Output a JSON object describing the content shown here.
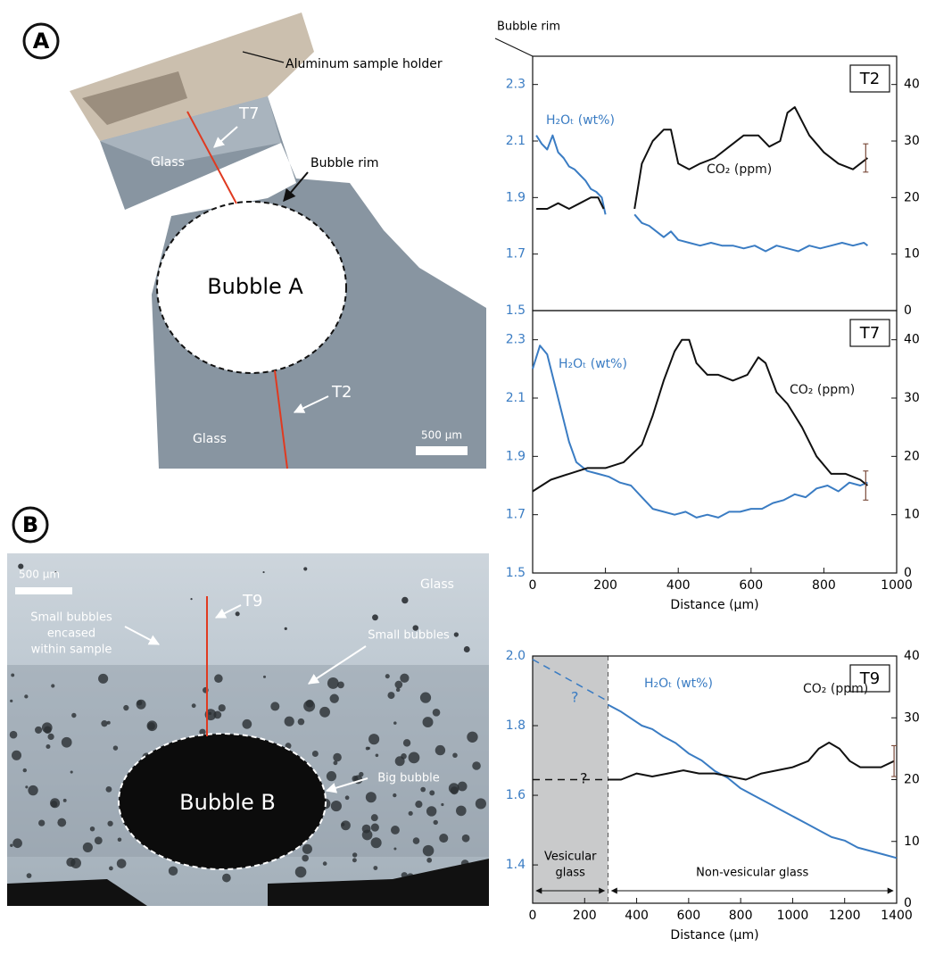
{
  "panels": {
    "A": {
      "label": "A",
      "holder": "Aluminum sample holder",
      "t7": "T7",
      "glass_top": "Glass",
      "rim": "Bubble rim",
      "bubble": "Bubble A",
      "t2": "T2",
      "glass_bottom": "Glass",
      "scale": "500 µm"
    },
    "B": {
      "label": "B",
      "scale": "500 µm",
      "t9": "T9",
      "glass": "Glass",
      "encased": [
        "Small bubbles",
        "encased",
        "within sample"
      ],
      "small": "Small bubbles",
      "big": "Big bubble",
      "bubble": "Bubble B"
    }
  },
  "chart_data": [
    {
      "type": "line",
      "title": "T2",
      "annotation": "Bubble rim",
      "xlim": [
        0,
        1000
      ],
      "ylim": [
        1.5,
        2.4
      ],
      "yticks": [
        1.5,
        1.7,
        1.9,
        2.1,
        2.3
      ],
      "y2lim": [
        0,
        45
      ],
      "y2ticks": [
        0,
        10,
        20,
        30,
        40
      ],
      "series": [
        {
          "name": "H₂Oₜ (wt%)",
          "color": "#3a7cc3",
          "x": [
            10,
            25,
            40,
            55,
            70,
            85,
            100,
            115,
            130,
            145,
            160,
            175,
            190,
            200,
            240,
            280,
            300,
            320,
            340,
            360,
            380,
            400,
            430,
            460,
            490,
            520,
            550,
            580,
            610,
            640,
            670,
            700,
            730,
            760,
            790,
            820,
            850,
            880,
            910,
            920
          ],
          "values": [
            2.12,
            2.09,
            2.07,
            2.12,
            2.06,
            2.04,
            2.01,
            2.0,
            1.98,
            1.96,
            1.93,
            1.92,
            1.9,
            1.84,
            null,
            1.84,
            1.81,
            1.8,
            1.78,
            1.76,
            1.78,
            1.75,
            1.74,
            1.73,
            1.74,
            1.73,
            1.73,
            1.72,
            1.73,
            1.71,
            1.73,
            1.72,
            1.71,
            1.73,
            1.72,
            1.73,
            1.74,
            1.73,
            1.74,
            1.73
          ]
        },
        {
          "name": "CO₂ (ppm)",
          "color": "#111111",
          "axis": "y2",
          "x": [
            10,
            40,
            70,
            100,
            130,
            160,
            180,
            195,
            240,
            280,
            300,
            330,
            360,
            380,
            400,
            430,
            460,
            500,
            540,
            580,
            620,
            650,
            680,
            700,
            720,
            760,
            800,
            840,
            880,
            920
          ],
          "values": [
            18,
            18,
            19,
            18,
            19,
            20,
            20,
            18,
            null,
            18,
            26,
            30,
            32,
            32,
            26,
            25,
            26,
            27,
            29,
            31,
            31,
            29,
            30,
            35,
            36,
            31,
            28,
            26,
            25,
            27
          ]
        }
      ],
      "error_bars": [
        {
          "x": 915,
          "value": 27,
          "error": 2.5
        }
      ]
    },
    {
      "type": "line",
      "title": "T7",
      "xlabel": "Distance (µm)",
      "xlim": [
        0,
        1000
      ],
      "xticks": [
        0,
        200,
        400,
        600,
        800,
        1000
      ],
      "ylim": [
        1.5,
        2.4
      ],
      "yticks": [
        1.5,
        1.7,
        1.9,
        2.1,
        2.3
      ],
      "y2lim": [
        0,
        45
      ],
      "y2ticks": [
        0,
        10,
        20,
        30,
        40
      ],
      "series": [
        {
          "name": "H₂Oₜ (wt%)",
          "color": "#3a7cc3",
          "x": [
            0,
            20,
            40,
            60,
            80,
            100,
            120,
            150,
            180,
            210,
            240,
            270,
            300,
            330,
            360,
            390,
            420,
            450,
            480,
            510,
            540,
            570,
            600,
            630,
            660,
            690,
            720,
            750,
            780,
            810,
            840,
            870,
            900,
            920
          ],
          "values": [
            2.2,
            2.28,
            2.25,
            2.15,
            2.05,
            1.95,
            1.88,
            1.85,
            1.84,
            1.83,
            1.81,
            1.8,
            1.76,
            1.72,
            1.71,
            1.7,
            1.71,
            1.69,
            1.7,
            1.69,
            1.71,
            1.71,
            1.72,
            1.72,
            1.74,
            1.75,
            1.77,
            1.76,
            1.79,
            1.8,
            1.78,
            1.81,
            1.8,
            1.81
          ]
        },
        {
          "name": "CO₂ (ppm)",
          "color": "#111111",
          "axis": "y2",
          "x": [
            0,
            50,
            100,
            150,
            200,
            250,
            300,
            330,
            360,
            390,
            410,
            430,
            450,
            480,
            510,
            550,
            590,
            620,
            640,
            670,
            700,
            740,
            780,
            820,
            860,
            900,
            920
          ],
          "values": [
            14,
            16,
            17,
            18,
            18,
            19,
            22,
            27,
            33,
            38,
            40,
            40,
            36,
            34,
            34,
            33,
            34,
            37,
            36,
            31,
            29,
            25,
            20,
            17,
            17,
            16,
            15
          ]
        }
      ],
      "error_bars": [
        {
          "x": 915,
          "value": 15,
          "error": 2.5
        }
      ]
    },
    {
      "type": "line",
      "title": "T9",
      "xlabel": "Distance (µm)",
      "xlim": [
        0,
        1400
      ],
      "xticks": [
        0,
        200,
        400,
        600,
        800,
        1000,
        1200,
        1400
      ],
      "ylim": [
        1.29,
        2.0
      ],
      "yticks": [
        1.4,
        1.6,
        1.8,
        {
          "value": 2,
          "label": "2.0"
        }
      ],
      "y2lim": [
        0,
        40
      ],
      "y2ticks": [
        0,
        10,
        20,
        30,
        40
      ],
      "series": [
        {
          "name": "?",
          "color": "#3a7cc3",
          "dashed": true,
          "x": [
            0,
            290
          ],
          "values": [
            1.99,
            1.87
          ]
        },
        {
          "name": "H₂Oₜ (wt%)",
          "color": "#3a7cc3",
          "x": [
            290,
            340,
            380,
            420,
            460,
            500,
            550,
            600,
            650,
            700,
            750,
            800,
            850,
            900,
            950,
            1000,
            1050,
            1100,
            1150,
            1200,
            1250,
            1300,
            1350,
            1400
          ],
          "values": [
            1.86,
            1.84,
            1.82,
            1.8,
            1.79,
            1.77,
            1.75,
            1.72,
            1.7,
            1.67,
            1.65,
            1.62,
            1.6,
            1.58,
            1.56,
            1.54,
            1.52,
            1.5,
            1.48,
            1.47,
            1.45,
            1.44,
            1.43,
            1.42
          ]
        },
        {
          "name": "?",
          "color": "#111111",
          "dashed": true,
          "axis": "y2",
          "x": [
            0,
            290
          ],
          "values": [
            20,
            20
          ]
        },
        {
          "name": "CO₂ (ppm)",
          "color": "#111111",
          "axis": "y2",
          "x": [
            290,
            340,
            400,
            460,
            520,
            580,
            640,
            700,
            760,
            820,
            880,
            940,
            1000,
            1060,
            1100,
            1140,
            1180,
            1220,
            1260,
            1300,
            1340,
            1390
          ],
          "values": [
            20,
            20,
            21,
            20.5,
            21,
            21.5,
            21,
            21,
            20.5,
            20,
            21,
            21.5,
            22,
            23,
            25,
            26,
            25,
            23,
            22,
            22,
            22,
            23
          ]
        }
      ],
      "regions": [
        {
          "label": [
            "Vesicular",
            "glass"
          ],
          "x": [
            0,
            290
          ],
          "shaded": true
        },
        {
          "label": [
            "Non-vesicular glass"
          ],
          "x": [
            290,
            1400
          ],
          "shaded": false
        }
      ],
      "error_bars": [
        {
          "x": 1390,
          "value": 23,
          "error": 2.5
        }
      ]
    }
  ]
}
